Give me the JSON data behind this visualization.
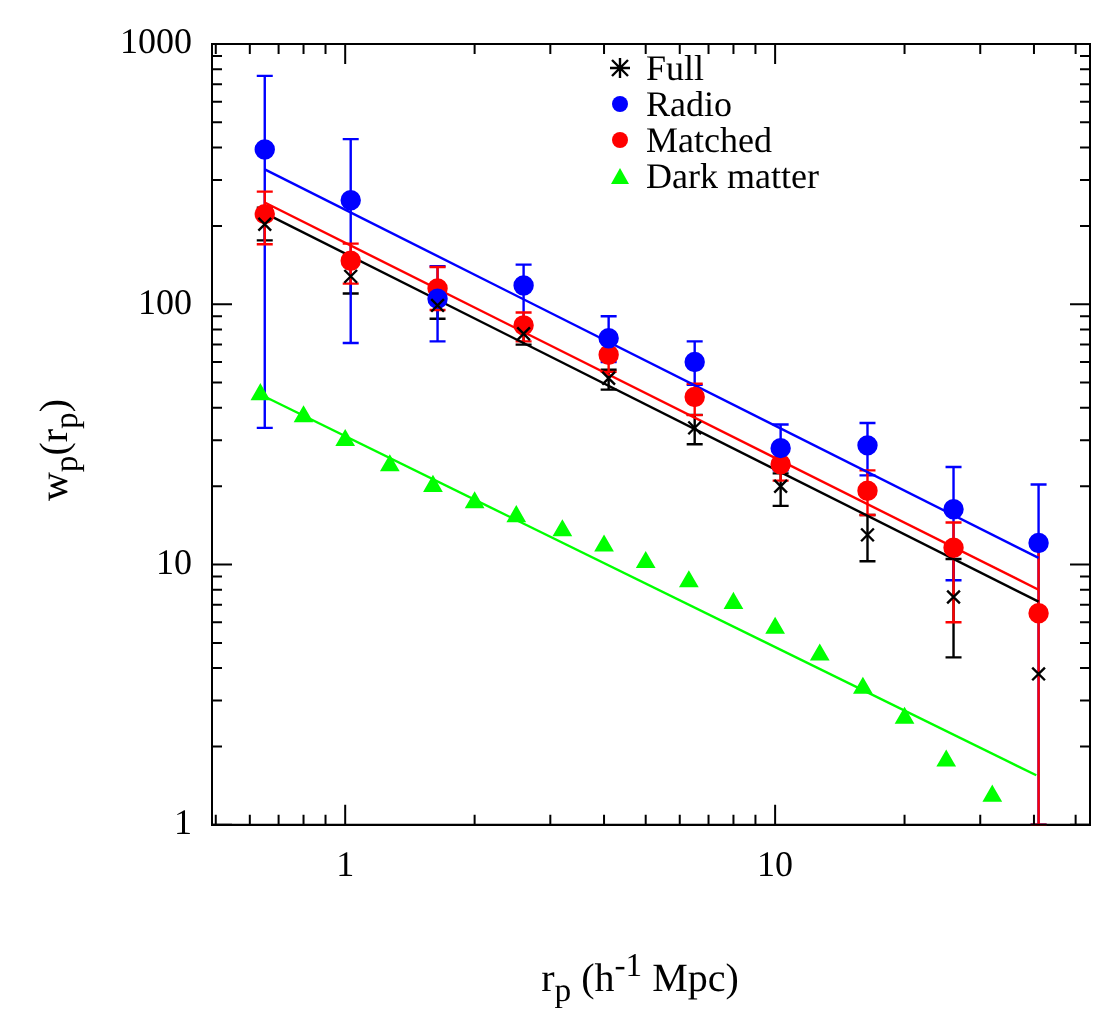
{
  "chart_data": {
    "type": "scatter",
    "xlabel": "r$_{p}$ (h$^{-1}$ Mpc)",
    "ylabel": "w$_{p}$(r$_{p}$)",
    "log": "xy",
    "legend": "top right",
    "grid": false,
    "xlim": [
      0.49,
      54
    ],
    "ylim": [
      1,
      1000
    ],
    "xticks": [
      {
        "value": 0.5,
        "label": null
      },
      {
        "value": 0.6,
        "label": null
      },
      {
        "value": 0.7,
        "label": null
      },
      {
        "value": 0.8,
        "label": null
      },
      {
        "value": 0.9,
        "label": null
      },
      1,
      {
        "value": 2,
        "label": null
      },
      {
        "value": 3,
        "label": null
      },
      {
        "value": 4,
        "label": null
      },
      {
        "value": 5,
        "label": null
      },
      {
        "value": 6,
        "label": null
      },
      {
        "value": 7,
        "label": null
      },
      {
        "value": 8,
        "label": null
      },
      {
        "value": 9,
        "label": null
      },
      10,
      {
        "value": 20,
        "label": null
      },
      {
        "value": 30,
        "label": null
      },
      {
        "value": 40,
        "label": null
      },
      {
        "value": 50,
        "label": null
      }
    ],
    "yticks": [
      1,
      {
        "value": 2,
        "label": null
      },
      {
        "value": 3,
        "label": null
      },
      {
        "value": 4,
        "label": null
      },
      {
        "value": 5,
        "label": null
      },
      {
        "value": 6,
        "label": null
      },
      {
        "value": 7,
        "label": null
      },
      {
        "value": 8,
        "label": null
      },
      {
        "value": 9,
        "label": null
      },
      10,
      {
        "value": 20,
        "label": null
      },
      {
        "value": 30,
        "label": null
      },
      {
        "value": 40,
        "label": null
      },
      {
        "value": 50,
        "label": null
      },
      {
        "value": 60,
        "label": null
      },
      {
        "value": 70,
        "label": null
      },
      {
        "value": 80,
        "label": null
      },
      {
        "value": 90,
        "label": null
      },
      100,
      {
        "value": 200,
        "label": null
      },
      {
        "value": 300,
        "label": null
      },
      {
        "value": 400,
        "label": null
      },
      {
        "value": 500,
        "label": null
      },
      {
        "value": 600,
        "label": null
      },
      {
        "value": 700,
        "label": null
      },
      {
        "value": 800,
        "label": null
      },
      {
        "value": 900,
        "label": null
      },
      1000
    ],
    "series": [
      {
        "name": "Full",
        "marker": "cross",
        "color": "#000000",
        "x": [
          0.65,
          1.03,
          1.64,
          2.6,
          4.1,
          6.5,
          10.3,
          16.4,
          26,
          41
        ],
        "values": [
          203,
          128,
          99,
          77,
          52,
          33.5,
          20,
          13,
          7.5,
          3.8
        ],
        "errors": [
          [
            176,
            235
          ],
          [
            110,
            150
          ],
          [
            88,
            110
          ],
          [
            70,
            83
          ],
          [
            47,
            56
          ],
          [
            29,
            37.6
          ],
          [
            16.8,
            22.4
          ],
          [
            10.3,
            15.5
          ],
          [
            4.4,
            10.5
          ],
          null
        ]
      },
      {
        "name": "Radio",
        "marker": "circle",
        "color": "#0000ff",
        "x": [
          0.65,
          1.03,
          1.64,
          2.6,
          4.1,
          6.5,
          10.3,
          16.4,
          26,
          41
        ],
        "values": [
          393,
          251,
          105,
          118,
          74,
          60,
          28,
          28.7,
          16.3,
          12.1
        ],
        "errors": [
          [
            33.5,
            754
          ],
          [
            71,
            431
          ],
          [
            72,
            140
          ],
          [
            85,
            142
          ],
          [
            60,
            90
          ],
          [
            49,
            72
          ],
          [
            23,
            34.5
          ],
          [
            22,
            35
          ],
          [
            8.7,
            23.7
          ],
          [
            1,
            20.3
          ]
        ]
      },
      {
        "name": "Matched",
        "marker": "circle",
        "color": "#ff0000",
        "x": [
          0.65,
          1.03,
          1.64,
          2.6,
          4.1,
          6.5,
          10.3,
          16.4,
          26,
          41
        ],
        "values": [
          222,
          147,
          115,
          83,
          64,
          44,
          24.3,
          19.2,
          11.6,
          6.5
        ],
        "errors": [
          [
            170,
            271
          ],
          [
            120,
            171
          ],
          [
            95,
            139
          ],
          [
            72,
            93
          ],
          [
            55,
            72
          ],
          [
            37.5,
            49.5
          ],
          [
            21,
            27
          ],
          [
            15.5,
            23
          ],
          [
            6,
            14.5
          ],
          [
            1,
            11.9
          ]
        ]
      },
      {
        "name": "Dark matter",
        "marker": "triangle",
        "color": "#00ff00",
        "x": [
          0.635,
          0.8,
          1,
          1.27,
          1.6,
          2,
          2.5,
          3.2,
          4,
          5,
          6.3,
          8,
          10,
          12.7,
          16,
          20,
          25,
          32
        ],
        "values": [
          45,
          37,
          30,
          24,
          20,
          17.3,
          15.3,
          13.5,
          11.8,
          10.2,
          8.6,
          7.1,
          5.7,
          4.5,
          3.35,
          2.57,
          1.76,
          1.29
        ]
      },
      {
        "type": "line",
        "color": "#000000",
        "x": [
          0.65,
          41
        ],
        "values": [
          224,
          7.2
        ]
      },
      {
        "type": "line",
        "color": "#ff0000",
        "x": [
          0.65,
          41
        ],
        "values": [
          246,
          8
        ]
      },
      {
        "type": "line",
        "color": "#0000ff",
        "x": [
          0.65,
          41
        ],
        "values": [
          330,
          10.6
        ]
      },
      {
        "type": "line",
        "color": "#00ff00",
        "x": [
          0.635,
          40.5
        ],
        "values": [
          45,
          1.55
        ]
      }
    ]
  }
}
